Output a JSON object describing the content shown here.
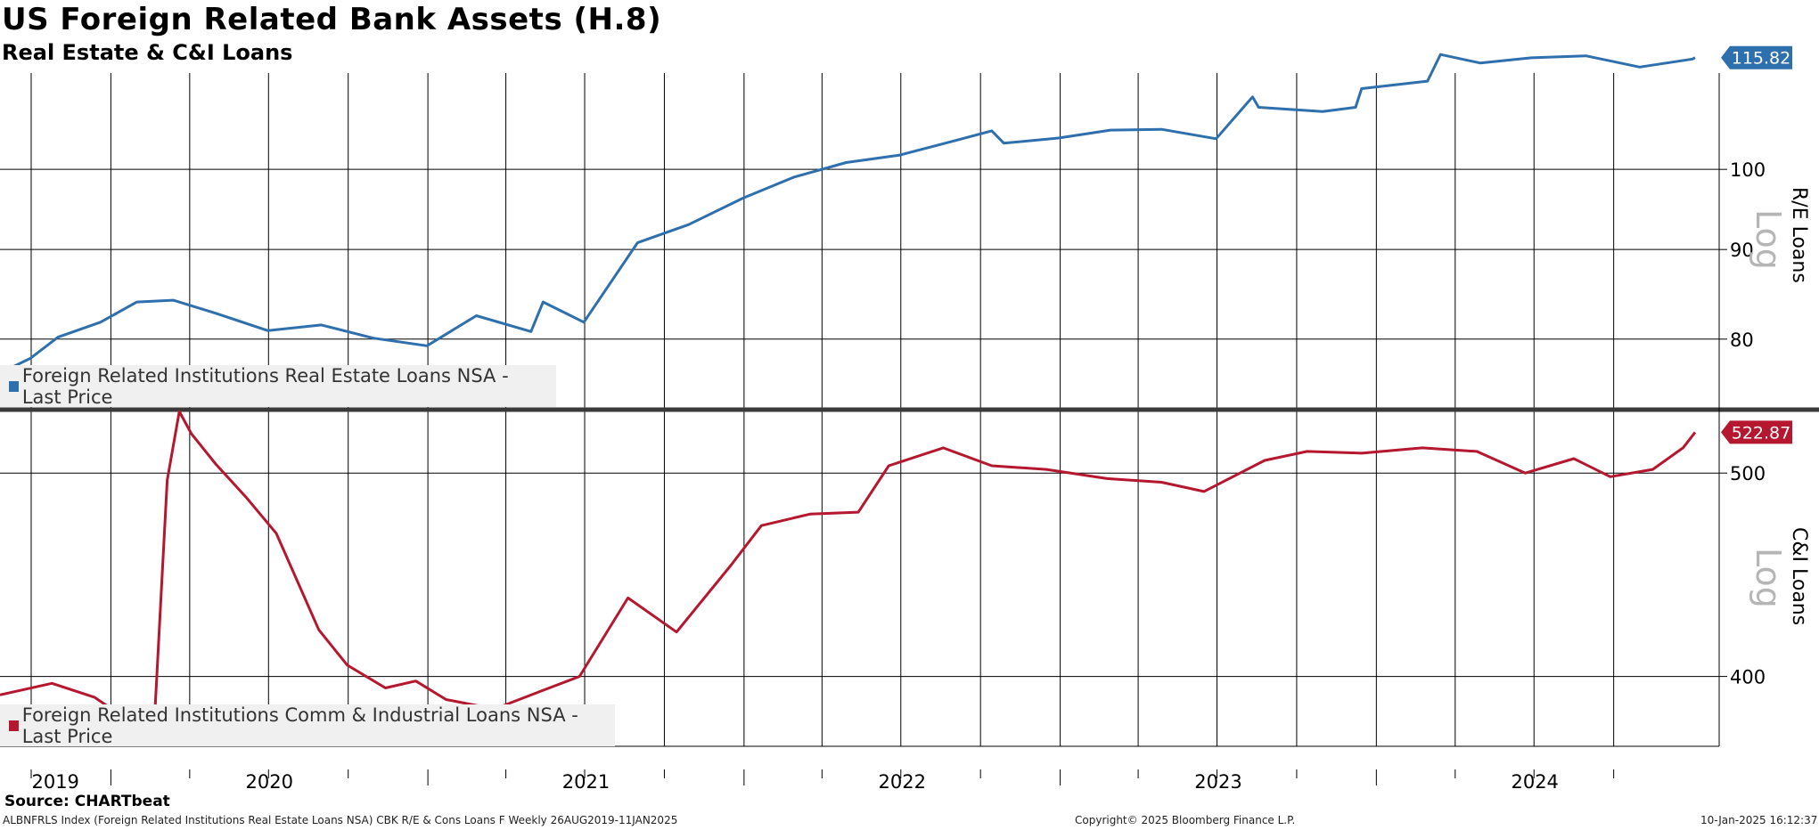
{
  "title": "US Foreign Related Bank Assets (H.8)",
  "subtitle": "Real Estate & C&I Loans",
  "source": "Source: CHARTbeat",
  "footer": {
    "left": "ALBNFRLS Index (Foreign Related Institutions Real Estate Loans NSA) CBK R/E & Cons Loans F  Weekly 26AUG2019-11JAN2025",
    "center": "Copyright© 2025 Bloomberg Finance L.P.",
    "right": "10-Jan-2025 16:12:37"
  },
  "colors": {
    "re": "#2e6fad",
    "ci": "#b5172f",
    "grid": "#000000"
  },
  "chart_data": [
    {
      "type": "line",
      "ylabel": "R/E Loans",
      "scale": "log",
      "scale_mark": "Log",
      "yticks": [
        80,
        90,
        100
      ],
      "ylim": [
        73,
        113.5
      ],
      "last_price_label": "115.82",
      "legend": "Foreign Related Institutions Real Estate Loans NSA - Last Price",
      "series": [
        {
          "name": "Foreign Related Institutions Real Estate Loans NSA - Last Price",
          "x": [
            "2019-08-26",
            "2019-09-30",
            "2019-11-01",
            "2019-12-20",
            "2020-01-31",
            "2020-03-13",
            "2020-04-30",
            "2020-06-30",
            "2020-08-31",
            "2020-10-30",
            "2020-12-31",
            "2021-02-26",
            "2021-04-30",
            "2021-05-14",
            "2021-06-30",
            "2021-08-31",
            "2021-10-29",
            "2021-12-31",
            "2022-02-28",
            "2022-04-29",
            "2022-06-30",
            "2022-08-31",
            "2022-10-14",
            "2022-10-28",
            "2022-12-30",
            "2023-02-28",
            "2023-04-28",
            "2023-06-30",
            "2023-08-11",
            "2023-08-18",
            "2023-10-31",
            "2023-12-08",
            "2023-12-15",
            "2024-02-29",
            "2024-03-15",
            "2024-04-30",
            "2024-06-28",
            "2024-08-30",
            "2024-10-31",
            "2024-12-31",
            "2025-01-03"
          ],
          "y": [
            76.5,
            78.0,
            80.2,
            81.8,
            84.0,
            84.2,
            82.8,
            80.9,
            81.5,
            80.1,
            79.3,
            82.5,
            80.8,
            84.0,
            81.8,
            90.8,
            93.0,
            96.3,
            99.0,
            100.9,
            101.9,
            103.8,
            105.2,
            103.5,
            104.2,
            105.3,
            105.4,
            104.1,
            110.0,
            108.5,
            107.9,
            108.5,
            111.2,
            112.3,
            116.3,
            115.0,
            115.8,
            116.1,
            114.4,
            115.6,
            115.82
          ]
        }
      ]
    },
    {
      "type": "line",
      "ylabel": "C&I Loans",
      "scale": "log",
      "scale_mark": "Log",
      "yticks": [
        400,
        500
      ],
      "ylim": [
        370.5,
        535.5
      ],
      "last_price_label": "522.87",
      "legend": "Foreign Related Institutions Comm & Industrial Loans NSA - Last Price",
      "series": [
        {
          "name": "Foreign Related Institutions Comm & Industrial Loans NSA - Last Price",
          "x": [
            "2019-08-26",
            "2019-10-25",
            "2019-12-13",
            "2020-01-10",
            "2020-02-21",
            "2020-03-06",
            "2020-03-20",
            "2020-04-03",
            "2020-05-01",
            "2020-06-05",
            "2020-07-10",
            "2020-08-28",
            "2020-09-30",
            "2020-11-13",
            "2020-12-18",
            "2021-01-22",
            "2021-03-19",
            "2021-05-14",
            "2021-06-25",
            "2021-08-20",
            "2021-10-15",
            "2021-12-17",
            "2022-01-21",
            "2022-03-18",
            "2022-05-13",
            "2022-06-17",
            "2022-08-19",
            "2022-10-14",
            "2022-12-16",
            "2023-02-24",
            "2023-04-28",
            "2023-06-16",
            "2023-08-25",
            "2023-10-13",
            "2023-12-15",
            "2024-02-23",
            "2024-04-26",
            "2024-06-21",
            "2024-08-16",
            "2024-09-27",
            "2024-11-15",
            "2024-12-20",
            "2025-01-03"
          ],
          "y": [
            392,
            397,
            391,
            384,
            386,
            496,
            535,
            522,
            505,
            487,
            468,
            421,
            405,
            395,
            398,
            390,
            386,
            394,
            400,
            436,
            420,
            452,
            472,
            478,
            479,
            504,
            514,
            504,
            502,
            497,
            495,
            490,
            507,
            512,
            511,
            514,
            512,
            500,
            508,
            498,
            502,
            514,
            522.87
          ]
        }
      ]
    }
  ],
  "x_axis": {
    "year_labels": [
      "2019",
      "2020",
      "2021",
      "2022",
      "2023",
      "2024"
    ],
    "start": "2019-08-26",
    "end": "2025-01-03"
  }
}
